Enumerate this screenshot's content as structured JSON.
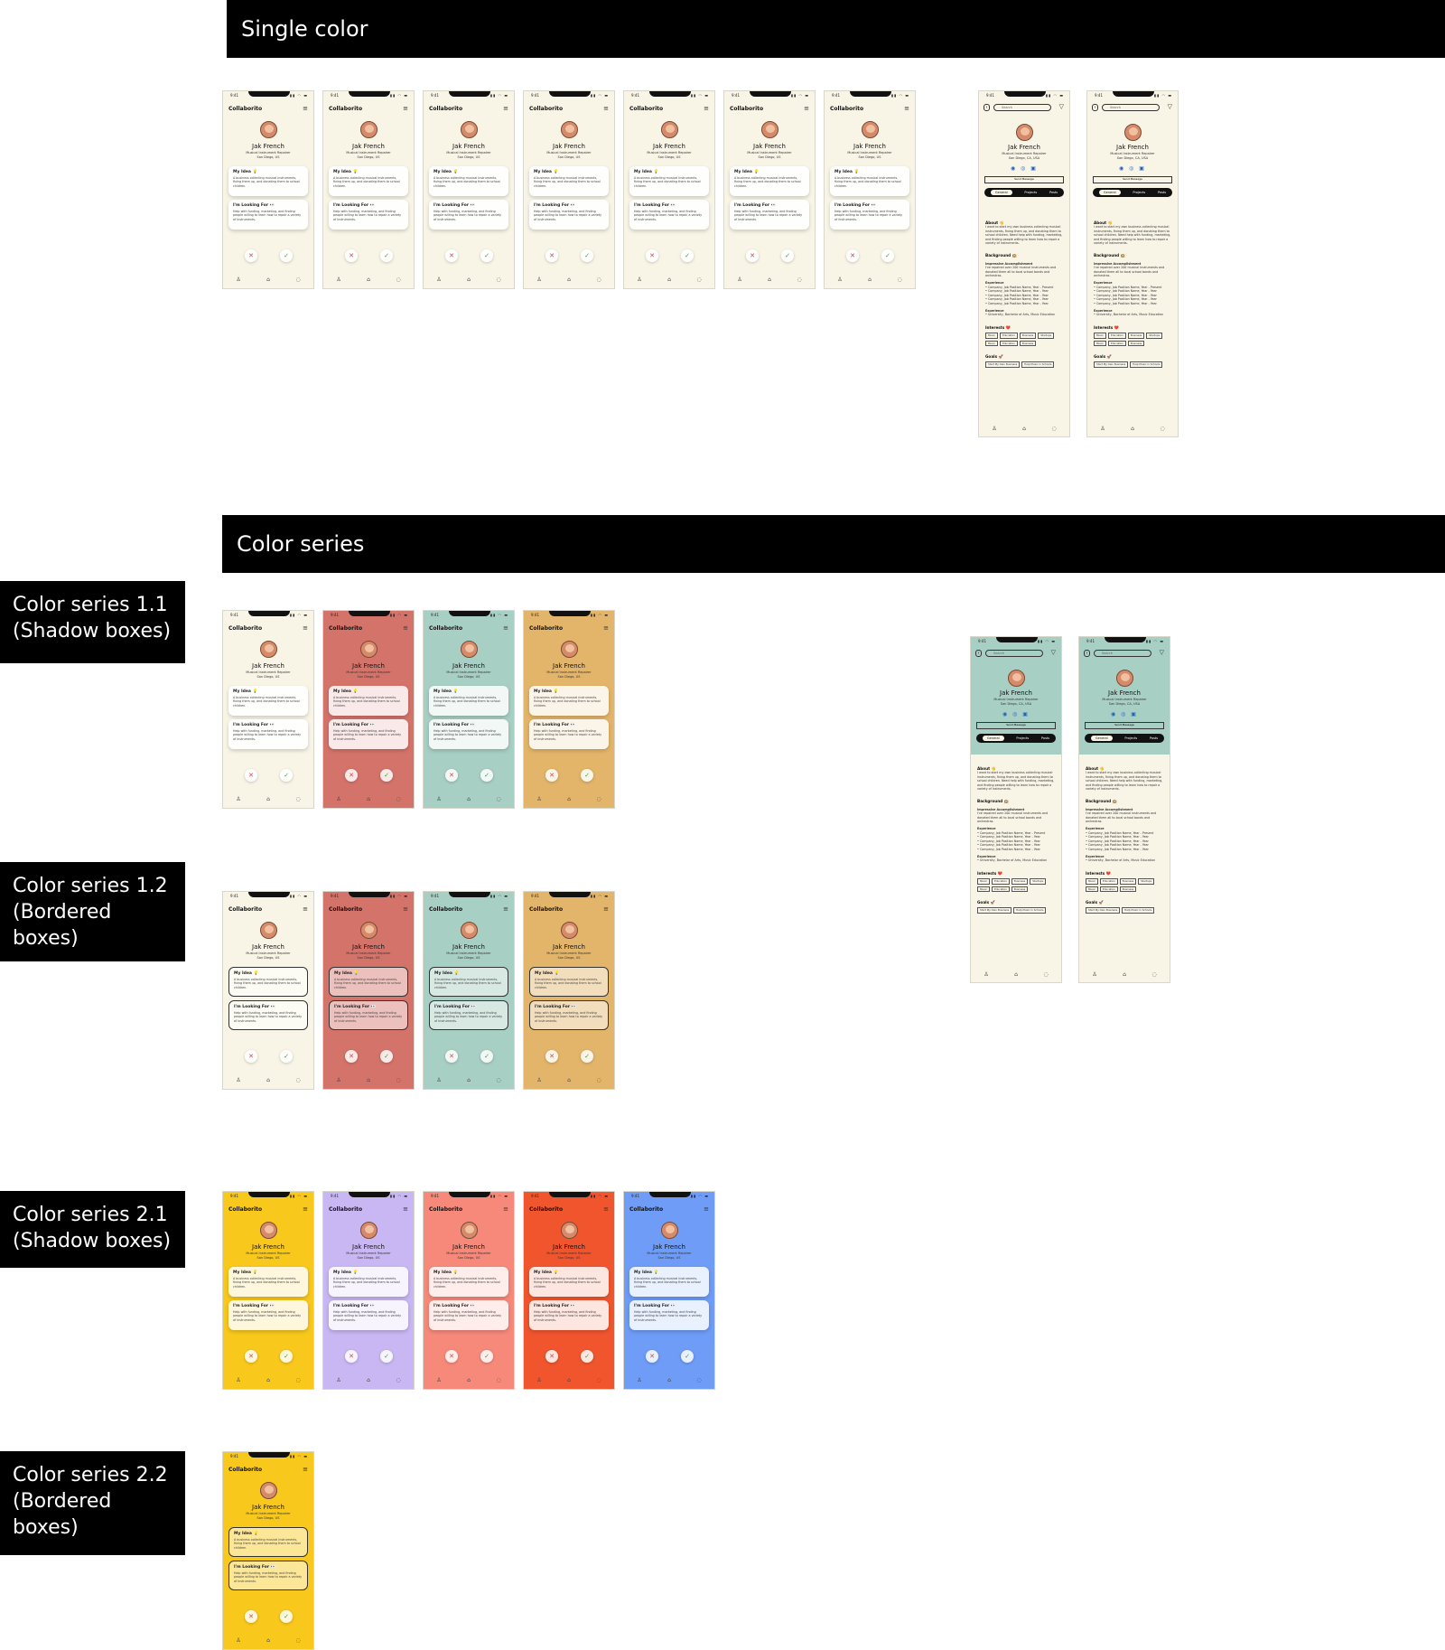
{
  "sections": {
    "single_color": "Single color",
    "color_series": "Color series"
  },
  "labels": {
    "s11": "Color series 1.1 (Shadow boxes)",
    "s12": "Color series 1.2 (Bordered boxes)",
    "s21": "Color series 2.1 (Shadow boxes)",
    "s22": "Color series 2.2 (Bordered boxes)"
  },
  "phone": {
    "time": "9:41",
    "status_icons": "▮▮ ◠ ▬",
    "app_title": "Collaborito",
    "name": "Jak French",
    "subtitle": "Musical Instrument Repairer",
    "location": "San Diego, US",
    "idea_title": "My Idea 💡",
    "idea_text": "A business collecting musical instruments, fixing them up, and donating them to school children.",
    "looking_title": "I'm Looking For 👀",
    "looking_text": "Help with funding, marketing, and finding people willing to learn how to repair a variety of instruments.",
    "reject_icon": "✕",
    "accept_icon": "✓",
    "nav_icons": [
      "♙",
      "⌂",
      "◌"
    ]
  },
  "profile": {
    "search_placeholder": "Search",
    "location": "San Diego, CA, USA",
    "socials": "◉ ◎ ▣",
    "message_button": "Send Message",
    "tabs": [
      "General",
      "Projects",
      "Posts"
    ],
    "about_title": "About 👋",
    "about_text": "I want to start my own business collecting musical instruments, fixing them up, and donating them to school children. Need help with funding, marketing, and finding people willing to learn how to repair a variety of instruments.",
    "background_title": "Background 🏫",
    "accomplishment_title": "Impressive Accomplishment",
    "accomplishment_text": "I've repaired over 200 musical instruments and donated them all to local school bands and orchestras.",
    "experience_title": "Experience",
    "experience_items": [
      "Company, Job Position Name, Year - Present",
      "Company, Job Position Name, Year - Year",
      "Company, Job Position Name, Year - Year",
      "Company, Job Position Name, Year - Year",
      "Company, Job Position Name, Year - Year"
    ],
    "education_title": "Experience",
    "education_item": "University, Bachelor of Arts, Music Education",
    "interests_title": "Interests ❤️",
    "interests": [
      "Music",
      "Education",
      "Business",
      "Startups",
      "Music",
      "Education",
      "Business"
    ],
    "goals_title": "Goals 🚀",
    "goals": [
      "Start My Own Business",
      "Help Music in Schools"
    ]
  },
  "colors": {
    "cream": "#f8f5e7",
    "red": "#d4736a",
    "teal": "#a8cfc3",
    "orange": "#e3b56a",
    "yellow": "#f8c81c",
    "lavender": "#c8b7f2",
    "salmon": "#f6897a",
    "vermilion": "#f0552e",
    "blue": "#6e9cf6"
  }
}
